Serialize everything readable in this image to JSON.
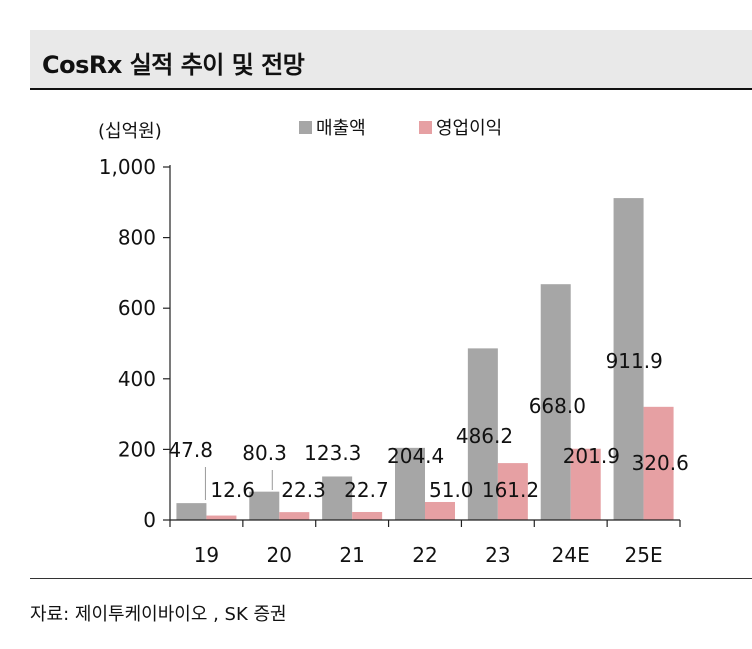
{
  "header": {
    "title": "CosRx 실적 추이 및 전망"
  },
  "footer": {
    "source": "자료: 제이투케이바이오 , SK 증권"
  },
  "colors": {
    "sales": "#a6a6a6",
    "op": "#e6a0a3",
    "axis": "#222222"
  },
  "chart_data": {
    "type": "bar",
    "unit_label": "(십억원)",
    "categories": [
      "19",
      "20",
      "21",
      "22",
      "23",
      "24E",
      "25E"
    ],
    "series": [
      {
        "name": "매출액",
        "values": [
          47.8,
          80.3,
          123.3,
          204.4,
          486.2,
          668.0,
          911.9
        ],
        "labels": [
          "47.8",
          "80.3",
          "123.3",
          "204.4",
          "486.2",
          "668.0",
          "911.9"
        ]
      },
      {
        "name": "영업이익",
        "values": [
          12.6,
          22.3,
          22.7,
          51.0,
          161.2,
          201.9,
          320.6
        ],
        "labels": [
          "12.6",
          "22.3",
          "22.7",
          "51.0",
          "161.2",
          "201.9",
          "320.6"
        ]
      }
    ],
    "y_ticks": [
      "0",
      "200",
      "400",
      "600",
      "800",
      "1,000"
    ],
    "ylim": [
      0,
      1000
    ],
    "legend_position": "top"
  }
}
